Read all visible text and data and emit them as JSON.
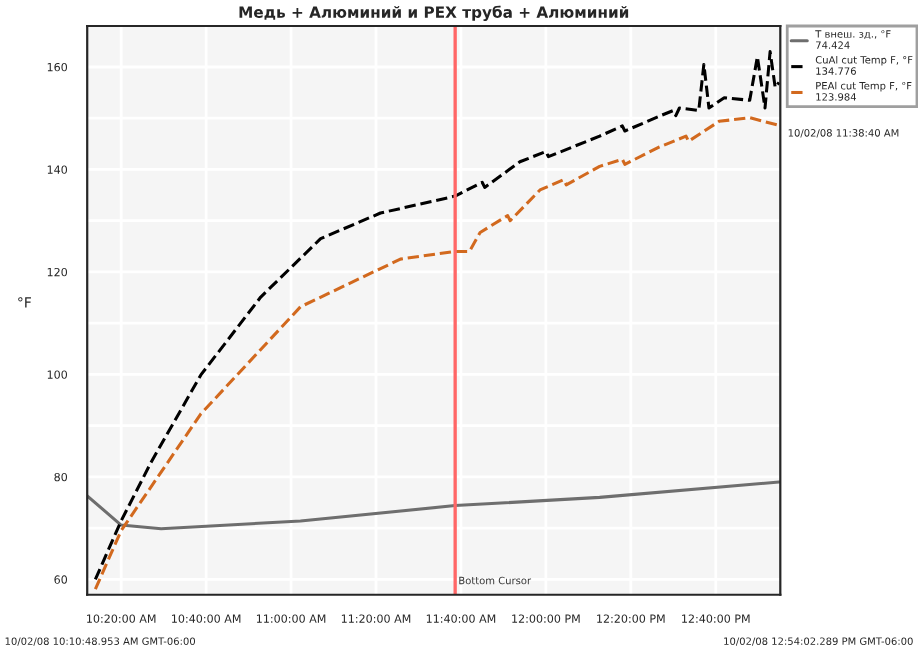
{
  "chart_data": {
    "type": "line",
    "title": "Медь + Алюминий и PEX труба + Алюминий",
    "ylabel": "°F",
    "series": [
      {
        "name": "T внеш. зд., °F\n74.424",
        "color": "#6e6e6e",
        "line_style": "solid",
        "x": [
          10.2,
          10.333,
          10.49,
          11.037,
          11.644,
          12.211,
          12.915
        ],
        "values": [
          76.3,
          70.6,
          69.9,
          71.4,
          74.4,
          76,
          79
        ]
      },
      {
        "name": "CuAl cut Temp F, °F\n134.776",
        "color": "#000000",
        "line_style": "dashed",
        "x": [
          10.232,
          10.333,
          10.45,
          10.646,
          10.881,
          11.116,
          11.351,
          11.644,
          11.75,
          11.76,
          11.898,
          12.0,
          12.01,
          12.211,
          12.3,
          12.31,
          12.45,
          12.5,
          12.51,
          12.524,
          12.6,
          12.62,
          12.64,
          12.7,
          12.8,
          12.83,
          12.86,
          12.88,
          12.9,
          12.915
        ],
        "values": [
          60,
          71.4,
          82.8,
          99.9,
          115.1,
          126.5,
          131.5,
          134.8,
          137.5,
          136.5,
          141.5,
          143.5,
          142.5,
          146.5,
          148.5,
          147.5,
          150.5,
          151.5,
          150.5,
          152,
          151.5,
          160.5,
          152,
          154,
          153.5,
          162,
          152,
          163,
          156,
          157
        ]
      },
      {
        "name": "PEAl cut Temp F, °F\n123.984",
        "color": "#d2691e",
        "line_style": "dashed",
        "x": [
          10.232,
          10.333,
          10.646,
          11.037,
          11.429,
          11.644,
          11.7,
          11.742,
          11.85,
          11.86,
          11.977,
          12.07,
          12.08,
          12.211,
          12.3,
          12.31,
          12.446,
          12.55,
          12.56,
          12.68,
          12.8,
          12.915
        ],
        "values": [
          58.1,
          69.5,
          92.3,
          113.2,
          122.5,
          124,
          124,
          127.7,
          131,
          130,
          136,
          138,
          137,
          140.6,
          142,
          141,
          144.4,
          146.5,
          145.5,
          149.4,
          150.1,
          148.6
        ]
      }
    ],
    "xlim": [
      10.2,
      12.92
    ],
    "xticks": [
      {
        "value": 10.3333,
        "label": "10:20:00 AM"
      },
      {
        "value": 10.6667,
        "label": "10:40:00 AM"
      },
      {
        "value": 11.0,
        "label": "11:00:00 AM"
      },
      {
        "value": 11.3333,
        "label": "11:20:00 AM"
      },
      {
        "value": 11.6667,
        "label": "11:40:00 AM"
      },
      {
        "value": 12.0,
        "label": "12:00:00 PM"
      },
      {
        "value": 12.3333,
        "label": "12:20:00 PM"
      },
      {
        "value": 12.6667,
        "label": "12:40:00 PM"
      }
    ],
    "ylim": [
      57,
      168
    ],
    "yticks": [
      60,
      {
        "value": 70,
        "label": null
      },
      80,
      {
        "value": 90,
        "label": null
      },
      100,
      {
        "value": 110,
        "label": null
      },
      120,
      {
        "value": 130,
        "label": null
      },
      140,
      {
        "value": 150,
        "label": null
      },
      160
    ],
    "ref_lines": [
      {
        "axis": "x",
        "value": 11.644,
        "label": "Bottom Cursor",
        "color": "#ff6666"
      }
    ],
    "annotations": [
      "10/02/08 10:10:48.953 AM GMT-06:00",
      "10/02/08 12:54:02.289 PM GMT-06:00",
      "10/02/08 11:38:40 AM"
    ],
    "grid": true,
    "legend": "top right"
  }
}
